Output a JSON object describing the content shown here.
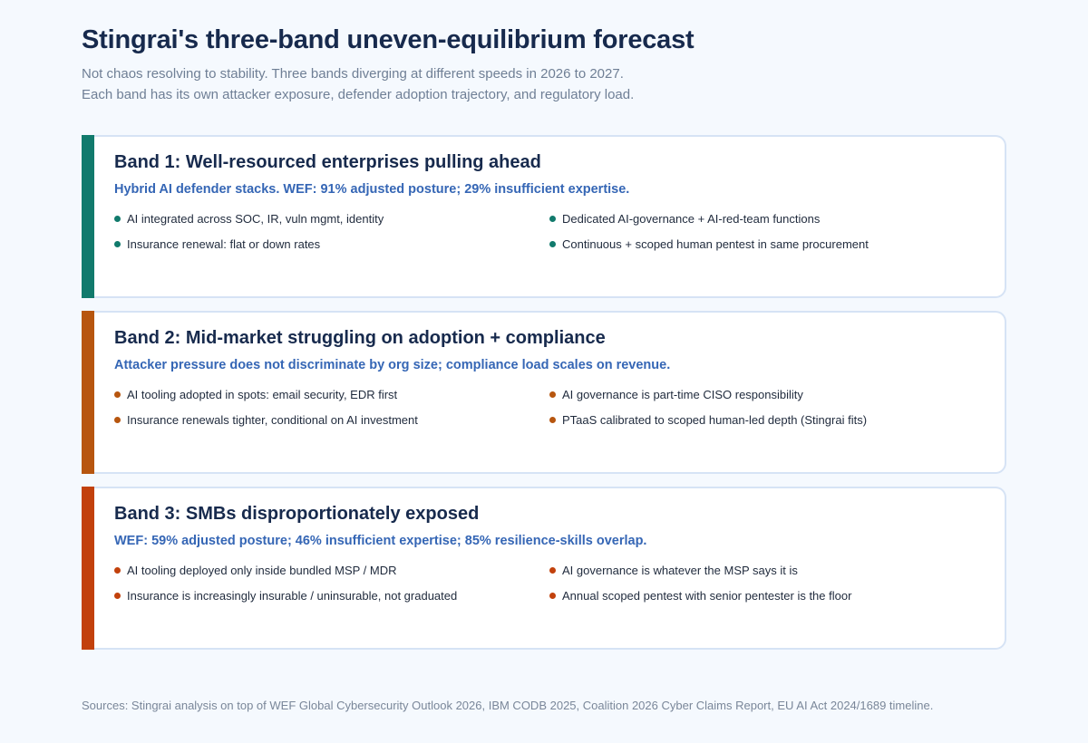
{
  "title": "Stingrai's three-band uneven-equilibrium forecast",
  "subtitle_lines": [
    "Not chaos resolving to stability. Three bands diverging at different speeds in 2026 to 2027.",
    "Each band has its own attacker exposure, defender adoption trajectory, and regulatory load."
  ],
  "bands": [
    {
      "title": "Band 1: Well-resourced enterprises pulling ahead",
      "subtitle": "Hybrid AI defender stacks. WEF: 91% adjusted posture; 29% insufficient expertise.",
      "accent_color": "#117a6c",
      "bullets": [
        "AI integrated across SOC, IR, vuln mgmt, identity",
        "Dedicated AI-governance + AI-red-team functions",
        "Insurance renewal: flat or down rates",
        "Continuous + scoped human pentest in same procurement"
      ]
    },
    {
      "title": "Band 2: Mid-market struggling on adoption + compliance",
      "subtitle": "Attacker pressure does not discriminate by org size; compliance load scales on revenue.",
      "accent_color": "#b7560f",
      "bullets": [
        "AI tooling adopted in spots: email security, EDR first",
        "AI governance is part-time CISO responsibility",
        "Insurance renewals tighter, conditional on AI investment",
        "PTaaS calibrated to scoped human-led depth (Stingrai fits)"
      ]
    },
    {
      "title": "Band 3: SMBs disproportionately exposed",
      "subtitle": "WEF: 59% adjusted posture; 46% insufficient expertise; 85% resilience-skills overlap.",
      "accent_color": "#c2410c",
      "bullets": [
        "AI tooling deployed only inside bundled MSP / MDR",
        "AI governance is whatever the MSP says it is",
        "Insurance is increasingly insurable / uninsurable, not graduated",
        "Annual scoped pentest with senior pentester is the floor"
      ]
    }
  ],
  "sources": "Sources: Stingrai analysis on top of WEF Global Cybersecurity Outlook 2026, IBM CODB 2025, Coalition 2026 Cyber Claims Report, EU AI Act 2024/1689 timeline."
}
